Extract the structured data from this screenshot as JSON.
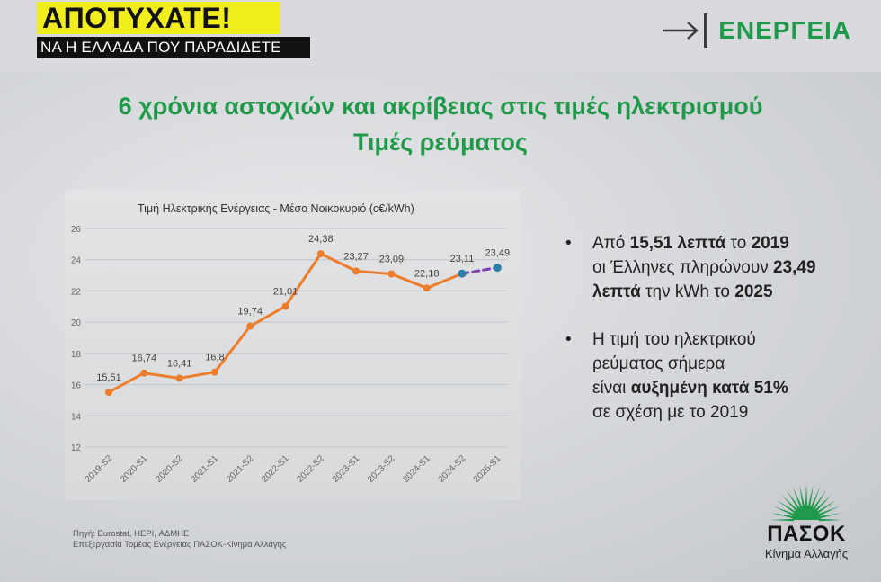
{
  "header": {
    "badge_title": "ΑΠΟΤΥΧΑΤΕ!",
    "badge_subtitle": "ΝΑ Η ΕΛΛΑΔΑ ΠΟΥ ΠΑΡΑΔΙΔΕΤΕ",
    "section_label": "ΕΝΕΡΓΕΙΑ",
    "accent_color": "#1f9a4a",
    "badge_color": "#f2ee1d"
  },
  "headings": {
    "line1": "6 χρόνια αστοχιών και ακρίβειας στις τιμές ηλεκτρισμού",
    "line2": "Τιμές ρεύματος"
  },
  "chart_data": {
    "type": "line",
    "title": "Τιμή Ηλεκτρικής Ενέργειας - Μέσο Νοικοκυριό (c€/kWh)",
    "categories": [
      "2019-S2",
      "2020-S1",
      "2020-S2",
      "2021-S1",
      "2021-S2",
      "2022-S1",
      "2022-S2",
      "2023-S1",
      "2023-S2",
      "2024-S1",
      "2024-S2",
      "2025-S1"
    ],
    "series": [
      {
        "values": [
          15.51,
          16.74,
          16.41,
          16.8,
          19.74,
          21.01,
          24.38,
          23.27,
          23.09,
          22.18,
          23.11,
          null
        ],
        "color": "#ee7d2b",
        "style": "solid"
      },
      {
        "values": [
          null,
          null,
          null,
          null,
          null,
          null,
          null,
          null,
          null,
          null,
          23.11,
          23.49
        ],
        "color": "#7a3fb0",
        "style": "dashed"
      }
    ],
    "data_labels": [
      "15,51",
      "16,74",
      "16,41",
      "16,8",
      "19,74",
      "21,01",
      "24,38",
      "23,27",
      "23,09",
      "22,18",
      "23,11",
      "23,49"
    ],
    "yticks": [
      "12",
      "14",
      "16",
      "18",
      "20",
      "22",
      "24",
      "26"
    ],
    "ylim": [
      12,
      26
    ],
    "grid": true
  },
  "bullets": {
    "b1": {
      "l1_pre": "Από ",
      "l1_b1": "15,51 λεπτά",
      "l1_mid": " το ",
      "l1_b2": "2019",
      "l2_pre": "οι Έλληνες πληρώνουν ",
      "l2_b": "23,49",
      "l3_b1": "λεπτά",
      "l3_mid": " την kWh το ",
      "l3_b2": "2025"
    },
    "b2": {
      "l1": "Η τιμή του ηλεκτρικού",
      "l2": "ρεύματος σήμερα",
      "l3_pre": "είναι ",
      "l3_b": "αυξημένη κατά 51%",
      "l4": "σε σχέση με το 2019"
    },
    "bullet_char": "•"
  },
  "source": {
    "line1": "Πηγή: Eurostat, HEPI, ΑΔΜΗΕ",
    "line2": "Επεξεργασία Τομέας Ενέργειας ΠΑΣΟΚ-Κίνημα Αλλαγής"
  },
  "logo": {
    "name": "ΠΑΣΟΚ",
    "subtitle": "Κίνημα Αλλαγής",
    "icon": "green-sun-icon"
  }
}
